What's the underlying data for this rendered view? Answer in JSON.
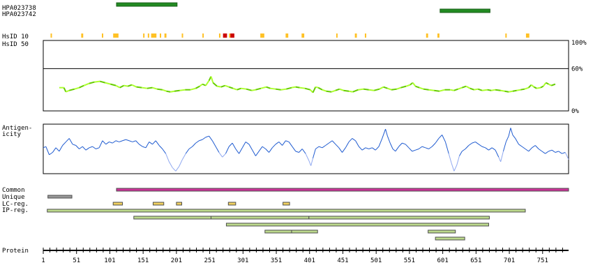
{
  "chart_data": {
    "type": "protein-feature-map",
    "axis": {
      "label": "Protein",
      "min": 1,
      "max": 790,
      "ticks": [
        1,
        51,
        101,
        151,
        201,
        251,
        301,
        351,
        401,
        451,
        501,
        551,
        601,
        651,
        701,
        751
      ]
    },
    "antigens": [
      {
        "name": "HPA023738",
        "start": 111,
        "end": 202,
        "color": "#228b22"
      },
      {
        "name": "HPA023742",
        "start": 597,
        "end": 672,
        "color": "#228b22"
      }
    ],
    "hsid": {
      "label10": "HsID 10",
      "label50": "HsID 50",
      "colors": {
        "low": "#ffc125",
        "high": "#cc0000"
      },
      "segments": [
        {
          "start": 12,
          "end": 13,
          "level": "low"
        },
        {
          "start": 58,
          "end": 61,
          "level": "low"
        },
        {
          "start": 89,
          "end": 90,
          "level": "low"
        },
        {
          "start": 106,
          "end": 114,
          "level": "low"
        },
        {
          "start": 151,
          "end": 152,
          "level": "low"
        },
        {
          "start": 158,
          "end": 160,
          "level": "low"
        },
        {
          "start": 163,
          "end": 171,
          "level": "low"
        },
        {
          "start": 176,
          "end": 177,
          "level": "low"
        },
        {
          "start": 183,
          "end": 186,
          "level": "low"
        },
        {
          "start": 209,
          "end": 210,
          "level": "low"
        },
        {
          "start": 240,
          "end": 241,
          "level": "low"
        },
        {
          "start": 265,
          "end": 267,
          "level": "low"
        },
        {
          "start": 271,
          "end": 277,
          "level": "high"
        },
        {
          "start": 280,
          "end": 281,
          "level": "low"
        },
        {
          "start": 282,
          "end": 288,
          "level": "high"
        },
        {
          "start": 327,
          "end": 333,
          "level": "low"
        },
        {
          "start": 365,
          "end": 369,
          "level": "low"
        },
        {
          "start": 389,
          "end": 393,
          "level": "low"
        },
        {
          "start": 441,
          "end": 443,
          "level": "low"
        },
        {
          "start": 469,
          "end": 472,
          "level": "low"
        },
        {
          "start": 484,
          "end": 486,
          "level": "low"
        },
        {
          "start": 576,
          "end": 579,
          "level": "low"
        },
        {
          "start": 593,
          "end": 596,
          "level": "low"
        },
        {
          "start": 695,
          "end": 696,
          "level": "low"
        },
        {
          "start": 726,
          "end": 731,
          "level": "low"
        }
      ]
    },
    "identity": {
      "ticks": [
        "100%",
        "60%",
        "0%"
      ],
      "reference": 60,
      "colors": {
        "light": "#adff2f",
        "dark": "#66cc00"
      },
      "points": [
        [
          25,
          33
        ],
        [
          32,
          33
        ],
        [
          35,
          27
        ],
        [
          40,
          29
        ],
        [
          48,
          31
        ],
        [
          55,
          33
        ],
        [
          62,
          36
        ],
        [
          70,
          39
        ],
        [
          78,
          41
        ],
        [
          86,
          42
        ],
        [
          94,
          40
        ],
        [
          102,
          38
        ],
        [
          110,
          36
        ],
        [
          116,
          33
        ],
        [
          122,
          36
        ],
        [
          128,
          35
        ],
        [
          134,
          37
        ],
        [
          141,
          34
        ],
        [
          149,
          33
        ],
        [
          157,
          32
        ],
        [
          165,
          33
        ],
        [
          172,
          31
        ],
        [
          180,
          30
        ],
        [
          186,
          28
        ],
        [
          192,
          27
        ],
        [
          198,
          28
        ],
        [
          206,
          29
        ],
        [
          214,
          30
        ],
        [
          222,
          30
        ],
        [
          230,
          32
        ],
        [
          236,
          35
        ],
        [
          240,
          38
        ],
        [
          245,
          36
        ],
        [
          250,
          43
        ],
        [
          253,
          49
        ],
        [
          256,
          40
        ],
        [
          262,
          35
        ],
        [
          268,
          34
        ],
        [
          274,
          36
        ],
        [
          280,
          34
        ],
        [
          286,
          32
        ],
        [
          292,
          30
        ],
        [
          298,
          32
        ],
        [
          306,
          31
        ],
        [
          314,
          29
        ],
        [
          320,
          30
        ],
        [
          328,
          32
        ],
        [
          336,
          34
        ],
        [
          342,
          32
        ],
        [
          350,
          31
        ],
        [
          358,
          30
        ],
        [
          366,
          31
        ],
        [
          374,
          33
        ],
        [
          380,
          34
        ],
        [
          386,
          33
        ],
        [
          394,
          32
        ],
        [
          402,
          30
        ],
        [
          406,
          26
        ],
        [
          410,
          34
        ],
        [
          414,
          33
        ],
        [
          420,
          30
        ],
        [
          426,
          28
        ],
        [
          434,
          27
        ],
        [
          440,
          29
        ],
        [
          446,
          31
        ],
        [
          452,
          29
        ],
        [
          460,
          28
        ],
        [
          466,
          27
        ],
        [
          474,
          30
        ],
        [
          482,
          31
        ],
        [
          490,
          30
        ],
        [
          498,
          29
        ],
        [
          506,
          31
        ],
        [
          512,
          34
        ],
        [
          518,
          32
        ],
        [
          524,
          30
        ],
        [
          532,
          31
        ],
        [
          538,
          33
        ],
        [
          546,
          35
        ],
        [
          552,
          37
        ],
        [
          556,
          40
        ],
        [
          560,
          35
        ],
        [
          566,
          33
        ],
        [
          572,
          31
        ],
        [
          580,
          30
        ],
        [
          588,
          29
        ],
        [
          596,
          28
        ],
        [
          604,
          30
        ],
        [
          612,
          30
        ],
        [
          618,
          29
        ],
        [
          624,
          31
        ],
        [
          630,
          33
        ],
        [
          636,
          35
        ],
        [
          642,
          32
        ],
        [
          648,
          30
        ],
        [
          654,
          31
        ],
        [
          660,
          29
        ],
        [
          668,
          30
        ],
        [
          674,
          29
        ],
        [
          680,
          30
        ],
        [
          688,
          29
        ],
        [
          694,
          28
        ],
        [
          700,
          27
        ],
        [
          706,
          28
        ],
        [
          712,
          29
        ],
        [
          718,
          30
        ],
        [
          724,
          31
        ],
        [
          730,
          33
        ],
        [
          734,
          37
        ],
        [
          738,
          34
        ],
        [
          742,
          32
        ],
        [
          748,
          33
        ],
        [
          752,
          35
        ],
        [
          756,
          40
        ],
        [
          760,
          38
        ],
        [
          764,
          36
        ],
        [
          770,
          38
        ]
      ]
    },
    "antigenicity": {
      "label_line1": "Antigen-",
      "label_line2": "icity",
      "colors": {
        "high": "#1f5bd0",
        "low": "#8fa8f0"
      },
      "min": -1,
      "max": 1,
      "points": [
        [
          1,
          0.05
        ],
        [
          5,
          0.1
        ],
        [
          10,
          -0.25
        ],
        [
          15,
          -0.15
        ],
        [
          20,
          0.05
        ],
        [
          25,
          -0.1
        ],
        [
          30,
          0.15
        ],
        [
          35,
          0.3
        ],
        [
          40,
          0.45
        ],
        [
          45,
          0.2
        ],
        [
          50,
          0.15
        ],
        [
          55,
          0.0
        ],
        [
          60,
          0.1
        ],
        [
          65,
          -0.05
        ],
        [
          70,
          0.05
        ],
        [
          75,
          0.1
        ],
        [
          80,
          0.0
        ],
        [
          85,
          0.05
        ],
        [
          90,
          0.35
        ],
        [
          95,
          0.2
        ],
        [
          100,
          0.3
        ],
        [
          105,
          0.25
        ],
        [
          110,
          0.35
        ],
        [
          115,
          0.3
        ],
        [
          120,
          0.35
        ],
        [
          125,
          0.4
        ],
        [
          130,
          0.35
        ],
        [
          135,
          0.3
        ],
        [
          140,
          0.35
        ],
        [
          145,
          0.2
        ],
        [
          150,
          0.1
        ],
        [
          155,
          0.05
        ],
        [
          160,
          0.3
        ],
        [
          165,
          0.2
        ],
        [
          170,
          0.35
        ],
        [
          175,
          0.15
        ],
        [
          180,
          0.0
        ],
        [
          185,
          -0.2
        ],
        [
          190,
          -0.55
        ],
        [
          195,
          -0.8
        ],
        [
          200,
          -0.95
        ],
        [
          205,
          -0.75
        ],
        [
          210,
          -0.45
        ],
        [
          215,
          -0.2
        ],
        [
          220,
          0.0
        ],
        [
          225,
          0.1
        ],
        [
          230,
          0.25
        ],
        [
          235,
          0.35
        ],
        [
          240,
          0.4
        ],
        [
          245,
          0.5
        ],
        [
          250,
          0.55
        ],
        [
          255,
          0.35
        ],
        [
          260,
          0.1
        ],
        [
          265,
          -0.15
        ],
        [
          270,
          -0.35
        ],
        [
          275,
          -0.2
        ],
        [
          280,
          0.1
        ],
        [
          285,
          0.25
        ],
        [
          290,
          0.0
        ],
        [
          295,
          -0.2
        ],
        [
          300,
          0.05
        ],
        [
          305,
          0.3
        ],
        [
          310,
          0.2
        ],
        [
          315,
          -0.05
        ],
        [
          320,
          -0.3
        ],
        [
          325,
          -0.1
        ],
        [
          330,
          0.1
        ],
        [
          335,
          0.0
        ],
        [
          340,
          -0.15
        ],
        [
          345,
          0.05
        ],
        [
          350,
          0.2
        ],
        [
          355,
          0.3
        ],
        [
          360,
          0.15
        ],
        [
          365,
          0.35
        ],
        [
          370,
          0.3
        ],
        [
          375,
          0.1
        ],
        [
          380,
          -0.1
        ],
        [
          385,
          -0.15
        ],
        [
          390,
          0.0
        ],
        [
          395,
          -0.2
        ],
        [
          400,
          -0.5
        ],
        [
          403,
          -0.72
        ],
        [
          406,
          -0.4
        ],
        [
          410,
          0.0
        ],
        [
          415,
          0.1
        ],
        [
          420,
          0.05
        ],
        [
          425,
          0.15
        ],
        [
          430,
          0.25
        ],
        [
          435,
          0.35
        ],
        [
          440,
          0.2
        ],
        [
          445,
          0.05
        ],
        [
          450,
          -0.15
        ],
        [
          455,
          0.05
        ],
        [
          460,
          0.3
        ],
        [
          465,
          0.45
        ],
        [
          470,
          0.35
        ],
        [
          475,
          0.1
        ],
        [
          480,
          -0.05
        ],
        [
          485,
          0.05
        ],
        [
          490,
          0.0
        ],
        [
          495,
          0.05
        ],
        [
          500,
          -0.05
        ],
        [
          505,
          0.1
        ],
        [
          510,
          0.45
        ],
        [
          515,
          0.85
        ],
        [
          518,
          0.55
        ],
        [
          522,
          0.25
        ],
        [
          526,
          0.0
        ],
        [
          530,
          -0.1
        ],
        [
          535,
          0.1
        ],
        [
          540,
          0.25
        ],
        [
          545,
          0.2
        ],
        [
          550,
          0.05
        ],
        [
          555,
          -0.1
        ],
        [
          560,
          -0.05
        ],
        [
          565,
          0.0
        ],
        [
          570,
          0.1
        ],
        [
          575,
          0.05
        ],
        [
          580,
          0.0
        ],
        [
          585,
          0.1
        ],
        [
          590,
          0.25
        ],
        [
          595,
          0.45
        ],
        [
          600,
          0.6
        ],
        [
          605,
          0.3
        ],
        [
          610,
          -0.2
        ],
        [
          614,
          -0.6
        ],
        [
          618,
          -0.95
        ],
        [
          622,
          -0.7
        ],
        [
          626,
          -0.3
        ],
        [
          630,
          -0.1
        ],
        [
          635,
          0.0
        ],
        [
          640,
          0.15
        ],
        [
          645,
          0.25
        ],
        [
          650,
          0.3
        ],
        [
          655,
          0.2
        ],
        [
          660,
          0.1
        ],
        [
          665,
          0.05
        ],
        [
          670,
          -0.05
        ],
        [
          675,
          0.05
        ],
        [
          680,
          -0.05
        ],
        [
          685,
          -0.35
        ],
        [
          688,
          -0.55
        ],
        [
          692,
          -0.1
        ],
        [
          696,
          0.3
        ],
        [
          700,
          0.55
        ],
        [
          703,
          0.9
        ],
        [
          706,
          0.6
        ],
        [
          710,
          0.45
        ],
        [
          715,
          0.2
        ],
        [
          720,
          0.1
        ],
        [
          725,
          0.0
        ],
        [
          730,
          -0.1
        ],
        [
          735,
          0.05
        ],
        [
          740,
          0.15
        ],
        [
          745,
          0.0
        ],
        [
          750,
          -0.1
        ],
        [
          755,
          -0.2
        ],
        [
          760,
          -0.1
        ],
        [
          765,
          -0.05
        ],
        [
          770,
          -0.15
        ],
        [
          775,
          -0.1
        ],
        [
          780,
          -0.2
        ],
        [
          785,
          -0.15
        ],
        [
          790,
          -0.45
        ]
      ]
    },
    "regions": {
      "labels": [
        "Common",
        "Unique",
        "LC-reg.",
        "IP-reg."
      ],
      "colors": {
        "common": "#cc3399",
        "unique": "#999999",
        "lc": "#f0d060",
        "ip": "#bcd98c",
        "outline": "#4d4d4d"
      },
      "common": [
        {
          "start": 111,
          "end": 790
        }
      ],
      "unique": [
        {
          "start": 8,
          "end": 44
        }
      ],
      "lc": [
        {
          "start": 106,
          "end": 120
        },
        {
          "start": 166,
          "end": 182
        },
        {
          "start": 201,
          "end": 209
        },
        {
          "start": 279,
          "end": 290
        },
        {
          "start": 361,
          "end": 371
        }
      ],
      "ip_rows": [
        [
          {
            "start": 7,
            "end": 725
          }
        ],
        [
          {
            "start": 137,
            "end": 253
          },
          {
            "start": 253,
            "end": 400
          },
          {
            "start": 400,
            "end": 671
          }
        ],
        [
          {
            "start": 276,
            "end": 670
          }
        ],
        [
          {
            "start": 334,
            "end": 374
          },
          {
            "start": 374,
            "end": 413
          },
          {
            "start": 579,
            "end": 620
          }
        ],
        [
          {
            "start": 590,
            "end": 634
          }
        ]
      ]
    }
  }
}
